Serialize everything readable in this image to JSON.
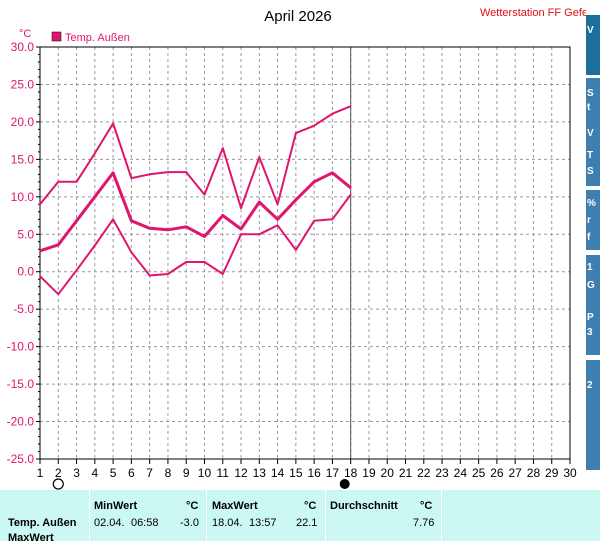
{
  "header": {
    "title": "April 2026",
    "station": "Wetterstation FF Gefell",
    "unit": "°C"
  },
  "legend": {
    "label": "Temp. Außen",
    "color": "#e0156e"
  },
  "chart_data": {
    "type": "line",
    "title": "April 2026",
    "ylabel": "°C",
    "xlabel": "",
    "ylim": [
      -25,
      30
    ],
    "xlim": [
      1,
      30
    ],
    "y_ticks": [
      "30.0",
      "25.0",
      "20.0",
      "15.0",
      "10.0",
      "5.0",
      "0.0",
      "-5.0",
      "-10.0",
      "-15.0",
      "-20.0",
      "-25.0"
    ],
    "x_ticks": [
      "1",
      "2",
      "3",
      "4",
      "5",
      "6",
      "7",
      "8",
      "9",
      "10",
      "11",
      "12",
      "13",
      "14",
      "15",
      "16",
      "17",
      "18",
      "19",
      "20",
      "21",
      "22",
      "23",
      "24",
      "25",
      "26",
      "27",
      "28",
      "29",
      "30"
    ],
    "grid": true,
    "legend_position": "top-left",
    "markers": {
      "new_moon_day": 2,
      "full_moon_day": 18,
      "current_day_line": 18
    },
    "series": [
      {
        "name": "Temp. Außen",
        "role": "max",
        "color": "#e0156e",
        "x": [
          1,
          2,
          3,
          4,
          5,
          6,
          7,
          8,
          9,
          10,
          11,
          12,
          13,
          14,
          15,
          16,
          17,
          18
        ],
        "y": [
          9.0,
          12.0,
          12.0,
          15.8,
          19.8,
          12.5,
          13.0,
          13.3,
          13.3,
          10.3,
          16.5,
          8.5,
          15.3,
          9.0,
          18.5,
          19.5,
          21.1,
          22.1
        ]
      },
      {
        "name": "Temp. Außen",
        "role": "avg",
        "color": "#e0156e",
        "x": [
          1,
          2,
          3,
          4,
          5,
          6,
          7,
          8,
          9,
          10,
          11,
          12,
          13,
          14,
          15,
          16,
          17,
          18
        ],
        "y": [
          2.8,
          3.6,
          6.8,
          10.0,
          13.2,
          6.8,
          5.8,
          5.6,
          6.0,
          4.7,
          7.5,
          5.7,
          9.3,
          7.0,
          9.6,
          12.0,
          13.2,
          11.2
        ]
      },
      {
        "name": "Temp. Außen",
        "role": "min",
        "color": "#e0156e",
        "x": [
          1,
          2,
          3,
          4,
          5,
          6,
          7,
          8,
          9,
          10,
          11,
          12,
          13,
          14,
          15,
          16,
          17,
          18
        ],
        "y": [
          -0.6,
          -3.0,
          0.2,
          3.5,
          7.0,
          2.6,
          -0.5,
          -0.3,
          1.3,
          1.3,
          -0.3,
          5.0,
          5.0,
          6.2,
          2.9,
          6.8,
          7.0,
          10.3
        ]
      }
    ]
  },
  "stats": {
    "row_label": "Temp. Außen",
    "row_label_cut": "MaxWert",
    "min_header": "MinWert",
    "max_header": "MaxWert",
    "avg_header": "Durchschnitt",
    "unit": "°C",
    "min_date": "02.04.",
    "min_time": "06:58",
    "min_value": "-3.0",
    "max_date": "18.04.",
    "max_time": "13:57",
    "max_value": "22.1",
    "avg_value": "7.76"
  },
  "side_strip": {
    "fragments": [
      "V",
      "S",
      "t",
      "V",
      "T",
      "S",
      "%",
      "r",
      "f",
      "1",
      "G",
      "P",
      "3",
      "2"
    ]
  }
}
